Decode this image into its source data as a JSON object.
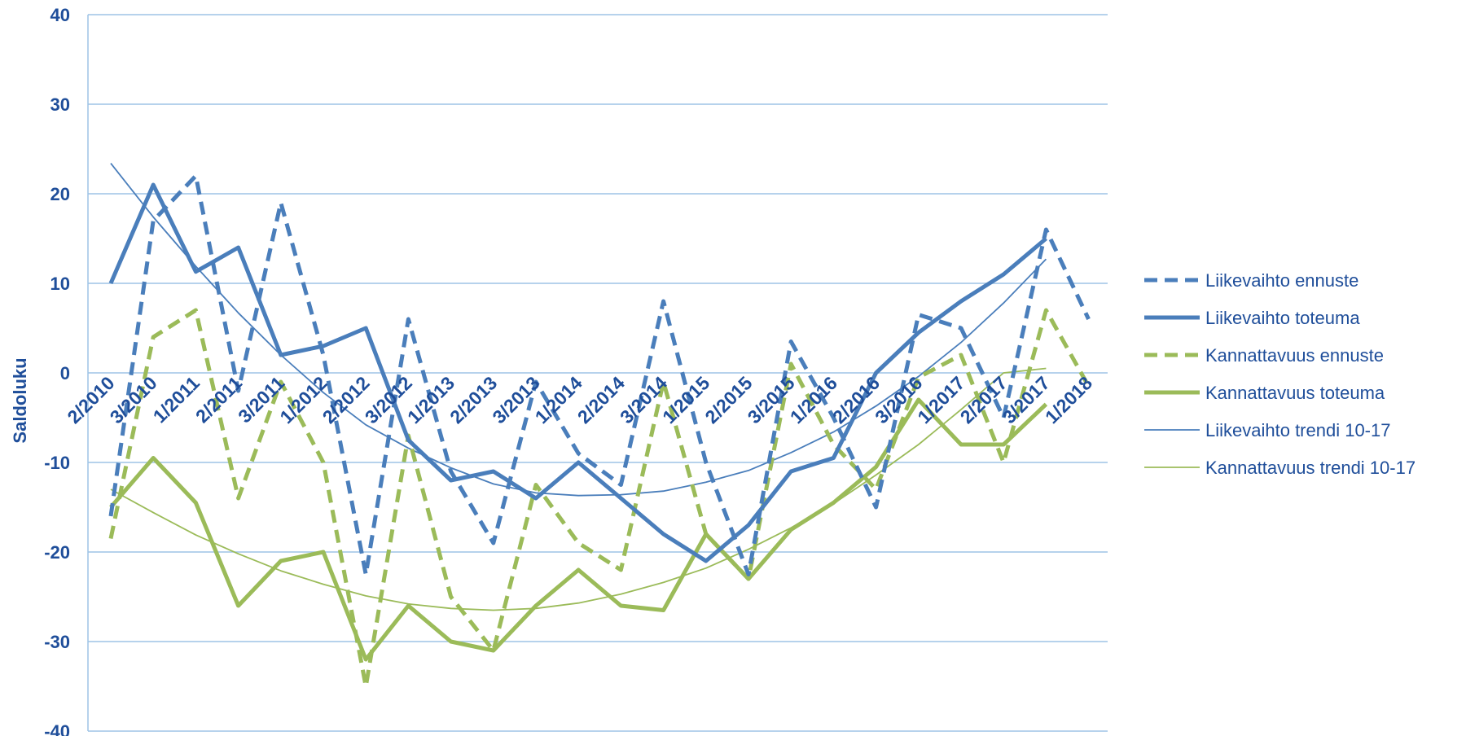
{
  "chart_data": {
    "type": "line",
    "title": "",
    "xlabel": "",
    "ylabel": "Saldoluku",
    "ylim": [
      -40,
      40
    ],
    "yticks": [
      "40",
      "30",
      "20",
      "10",
      "0",
      "-10",
      "-20",
      "-30",
      "-40"
    ],
    "grid": true,
    "legend_position": "right",
    "categories": [
      "2/2010",
      "3/2010",
      "1/2011",
      "2/2011",
      "3/2011",
      "1/2012",
      "2/2012",
      "3/2012",
      "1/2013",
      "2/2013",
      "3/2013",
      "1/2014",
      "2/2014",
      "3/2014",
      "1/2015",
      "2/2015",
      "3/2015",
      "1/2016",
      "2/2016",
      "3/2016",
      "1/2017",
      "2/2017",
      "3/2017",
      "1/2018"
    ],
    "series": [
      {
        "name": "Liikevaihto ennuste",
        "color": "#4A7EBB",
        "dash": true,
        "width": 5,
        "values": [
          -16,
          17,
          22,
          -2,
          19,
          2,
          -22.5,
          6,
          -11,
          -19,
          -1,
          -9,
          -12.5,
          8,
          -10,
          -22.5,
          3.5,
          -5,
          -15,
          6.5,
          5,
          -5,
          16,
          6
        ]
      },
      {
        "name": "Liikevaihto toteuma",
        "color": "#4A7EBB",
        "dash": false,
        "width": 5,
        "values": [
          10,
          21,
          11.3,
          14,
          2,
          3,
          5,
          -7.5,
          -12,
          -11,
          -14,
          -10,
          -14,
          -18,
          -21,
          -17,
          -11,
          -9.5,
          0,
          4.5,
          8,
          11,
          15,
          null
        ]
      },
      {
        "name": "Kannattavuus ennuste",
        "color": "#9BBB59",
        "dash": true,
        "width": 5,
        "values": [
          -18.5,
          4,
          7,
          -14,
          -1,
          -10,
          -35,
          -7,
          -25,
          -31,
          -12.5,
          -19,
          -22,
          -1,
          -18,
          -23,
          1,
          -8,
          -13,
          -0.5,
          2,
          -10,
          7,
          -1.5
        ]
      },
      {
        "name": "Kannattavuus toteuma",
        "color": "#9BBB59",
        "dash": false,
        "width": 5,
        "values": [
          -15,
          -9.5,
          -14.5,
          -26,
          -21,
          -20,
          -32,
          -26,
          -30,
          -31,
          -26,
          -22,
          -26,
          -26.5,
          -18,
          -23,
          -17.5,
          -14.5,
          -10.5,
          -3,
          -8,
          -8,
          -3.5,
          null
        ]
      },
      {
        "name": "Liikevaihto trendi 10-17",
        "color": "#4A7EBB",
        "dash": false,
        "width": 1.8,
        "values": [
          23.4,
          17.4,
          11.9,
          6.7,
          2.0,
          -2.2,
          -5.8,
          -8.4,
          -10.6,
          -12.4,
          -13.4,
          -13.7,
          -13.6,
          -13.2,
          -12.2,
          -10.9,
          -8.9,
          -6.6,
          -3.7,
          -0.4,
          3.4,
          7.8,
          12.7,
          null
        ]
      },
      {
        "name": "Kannattavuus trendi 10-17",
        "color": "#9BBB59",
        "dash": false,
        "width": 1.8,
        "values": [
          -13,
          -15.6,
          -18.1,
          -20.2,
          -22.1,
          -23.6,
          -24.9,
          -25.8,
          -26.3,
          -26.5,
          -26.3,
          -25.7,
          -24.7,
          -23.4,
          -21.8,
          -19.7,
          -17.3,
          -14.6,
          -11.4,
          -8.0,
          -4.1,
          0.0,
          0.5,
          null
        ]
      }
    ]
  }
}
